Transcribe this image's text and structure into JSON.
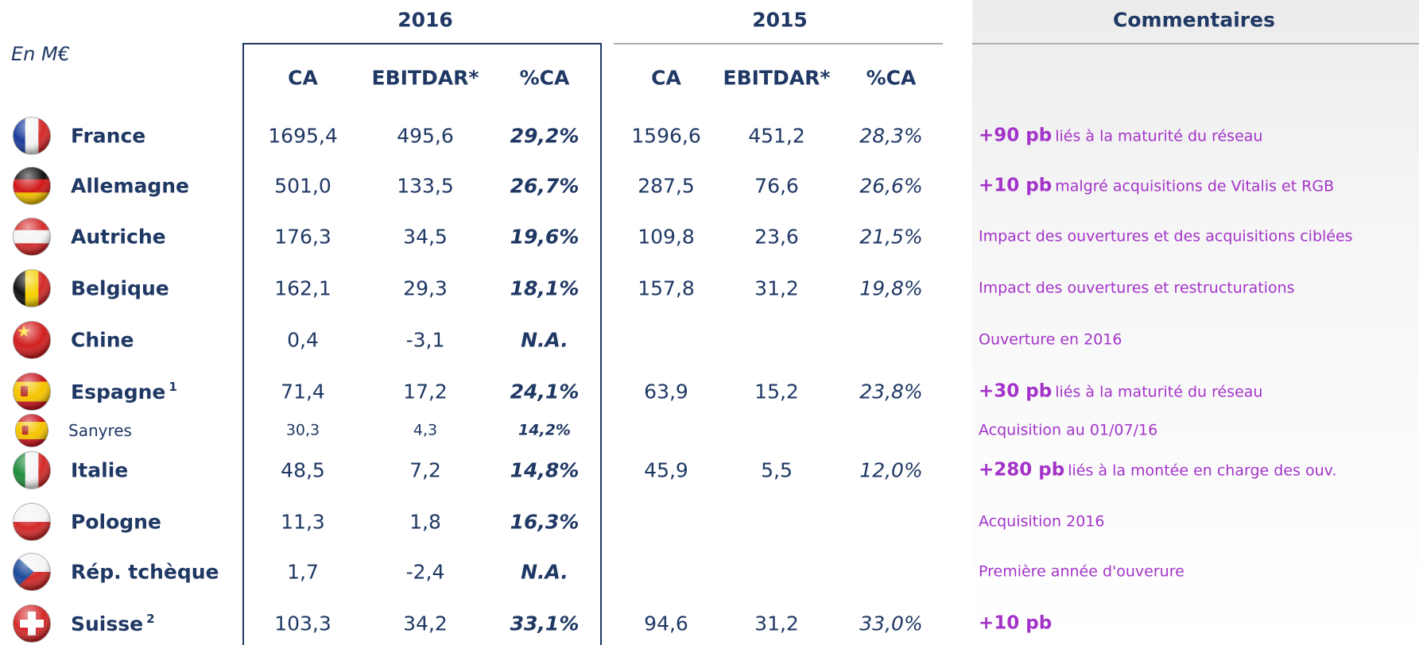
{
  "unit": "En M€",
  "groups": [
    {
      "label": "2016",
      "columns": [
        "CA",
        "EBITDAR*",
        "%CA"
      ]
    },
    {
      "label": "2015",
      "columns": [
        "CA",
        "EBITDAR*",
        "%CA"
      ]
    },
    {
      "label": "Commentaires"
    }
  ],
  "rows": [
    {
      "name": "France",
      "v2016": [
        "1695,4",
        "495,6",
        "29,2%"
      ],
      "v2015": [
        "1596,6",
        "451,2",
        "28,3%"
      ],
      "comment": {
        "bold": "+90 pb",
        "text": "liés à la maturité du réseau"
      }
    },
    {
      "name": "Allemagne",
      "v2016": [
        "501,0",
        "133,5",
        "26,7%"
      ],
      "v2015": [
        "287,5",
        "76,6",
        "26,6%"
      ],
      "comment": {
        "bold": "+10 pb",
        "text": "malgré acquisitions de Vitalis et RGB"
      }
    },
    {
      "name": "Autriche",
      "v2016": [
        "176,3",
        "34,5",
        "19,6%"
      ],
      "v2015": [
        "109,8",
        "23,6",
        "21,5%"
      ],
      "comment": {
        "text": "Impact des ouvertures et des acquisitions ciblées"
      }
    },
    {
      "name": "Belgique",
      "v2016": [
        "162,1",
        "29,3",
        "18,1%"
      ],
      "v2015": [
        "157,8",
        "31,2",
        "19,8%"
      ],
      "comment": {
        "text": "Impact des ouvertures et restructurations"
      }
    },
    {
      "name": "Chine",
      "v2016": [
        "0,4",
        "-3,1",
        "N.A."
      ],
      "comment": {
        "text": "Ouverture en 2016"
      }
    },
    {
      "name": "Espagne",
      "sup": "1",
      "v2016": [
        "71,4",
        "17,2",
        "24,1%"
      ],
      "v2015": [
        "63,9",
        "15,2",
        "23,8%"
      ],
      "comment": {
        "bold": "+30 pb",
        "text": "liés à la maturité du réseau"
      }
    },
    {
      "name": "Sanyres",
      "v2016": [
        "30,3",
        "4,3",
        "14,2%"
      ],
      "comment": {
        "text": "Acquisition au 01/07/16"
      }
    },
    {
      "name": "Italie",
      "v2016": [
        "48,5",
        "7,2",
        "14,8%"
      ],
      "v2015": [
        "45,9",
        "5,5",
        "12,0%"
      ],
      "comment": {
        "bold": "+280 pb",
        "text": "liés à la montée en charge des ouv."
      }
    },
    {
      "name": "Pologne",
      "v2016": [
        "11,3",
        "1,8",
        "16,3%"
      ],
      "comment": {
        "text": "Acquisition 2016"
      }
    },
    {
      "name": "Rép. tchèque",
      "v2016": [
        "1,7",
        "-2,4",
        "N.A."
      ],
      "comment": {
        "text": "Première année d'ouverure"
      }
    },
    {
      "name": "Suisse",
      "sup": "2",
      "v2016": [
        "103,3",
        "34,2",
        "33,1%"
      ],
      "v2015": [
        "94,6",
        "31,2",
        "33,0%"
      ],
      "comment": {
        "bold": "+10 pb"
      }
    }
  ]
}
